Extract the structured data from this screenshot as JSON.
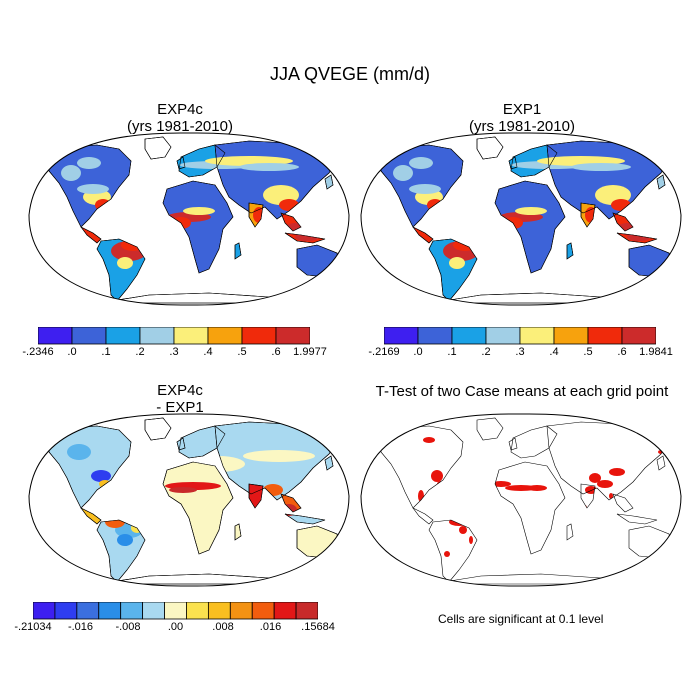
{
  "figure_title": "JJA QVEGE (mm/d)",
  "panels": [
    {
      "id": "exp4c",
      "title_line1": "EXP4c",
      "title_line2": "(yrs 1981-2010)",
      "type": "field",
      "cmap": "abs"
    },
    {
      "id": "exp1",
      "title_line1": "EXP1",
      "title_line2": "(yrs 1981-2010)",
      "type": "field",
      "cmap": "abs"
    },
    {
      "id": "diff",
      "title_line1": "EXP4c",
      "title_line2": "- EXP1",
      "type": "field",
      "cmap": "diff"
    },
    {
      "id": "ttest",
      "title_line1": "T-Test of two Case means at each grid point",
      "title_line2": "",
      "type": "signif",
      "cmap": "none"
    }
  ],
  "colorbars": {
    "abs1": {
      "colors": [
        "#3e1ff0",
        "#3d63d8",
        "#1aa1e6",
        "#a1cfe6",
        "#fbef7a",
        "#f7a20d",
        "#f02a0b",
        "#cc2b2b"
      ],
      "labels": [
        "-.2346",
        ".0",
        ".1",
        ".2",
        ".3",
        ".4",
        ".5",
        ".6",
        "1.9977"
      ]
    },
    "abs2": {
      "colors": [
        "#3e1ff0",
        "#3d63d8",
        "#1aa1e6",
        "#a1cfe6",
        "#fbef7a",
        "#f7a20d",
        "#f02a0b",
        "#cc2b2b"
      ],
      "labels": [
        "-.2169",
        ".0",
        ".1",
        ".2",
        ".3",
        ".4",
        ".5",
        ".6",
        "1.9841"
      ]
    },
    "diff": {
      "colors": [
        "#3d1ff0",
        "#2e3df0",
        "#3b6fdf",
        "#2a8ee8",
        "#5ab4ec",
        "#a9d9f0",
        "#fbf7c3",
        "#fbe24f",
        "#f9bf20",
        "#f39213",
        "#f25d0e",
        "#e21717",
        "#c82a2a"
      ],
      "labels": [
        "-.21034",
        "-.016",
        "-.008",
        ".00",
        ".008",
        ".016",
        ".15684"
      ]
    }
  },
  "significance_note": "Cells are significant at 0.1 level"
}
